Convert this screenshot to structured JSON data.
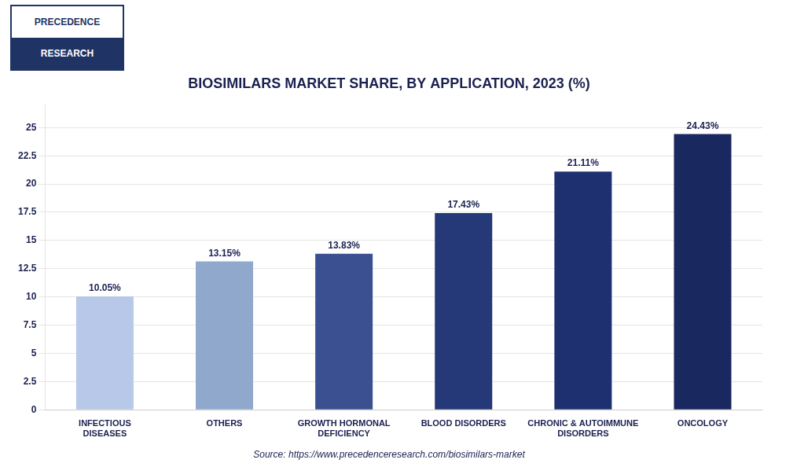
{
  "chart_data": {
    "type": "bar",
    "title": "BIOSIMILARS MARKET SHARE, BY APPLICATION, 2023 (%)",
    "categories": [
      "INFECTIOUS\nDISEASES",
      "OTHERS",
      "GROWTH HORMONAL\nDEFICIENCY",
      "BLOOD DISORDERS",
      "CHRONIC & AUTOIMMUNE\nDISORDERS",
      "ONCOLOGY"
    ],
    "values": [
      10.05,
      13.15,
      13.83,
      17.43,
      21.11,
      24.43
    ],
    "value_labels": [
      "10.05%",
      "13.15%",
      "13.83%",
      "17.43%",
      "21.11%",
      "24.43%"
    ],
    "data_labels": true,
    "colors": [
      "#b8c8e8",
      "#8fa8cc",
      "#3a5090",
      "#253878",
      "#1e3070",
      "#1a2860"
    ],
    "ylim": [
      0,
      27
    ],
    "yticks": [
      0,
      2.5,
      5,
      7.5,
      10,
      12.5,
      15,
      17.5,
      20,
      22.5,
      25
    ],
    "grid": true,
    "source": "Source: https://www.precedenceresearch.com/biosimilars-market",
    "annotations": [
      "PRECEDENCE",
      "RESEARCH"
    ]
  }
}
